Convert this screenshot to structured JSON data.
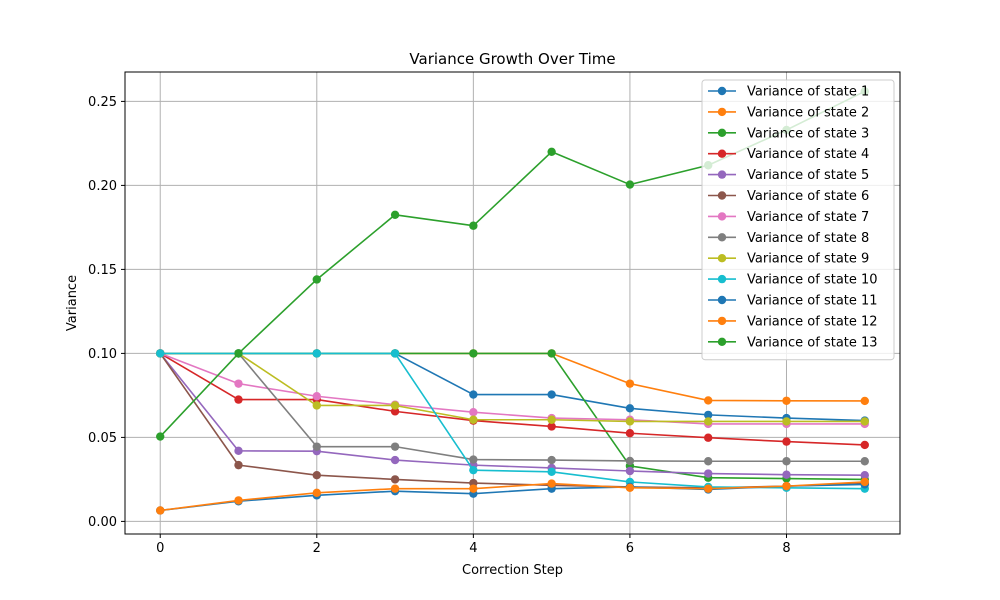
{
  "chart_data": {
    "type": "line",
    "title": "Variance Growth Over Time",
    "xlabel": "Correction Step",
    "ylabel": "Variance",
    "xlim": [
      -0.45,
      9.45
    ],
    "ylim": [
      -0.0075,
      0.2675
    ],
    "xticks": [
      0,
      2,
      4,
      6,
      8
    ],
    "xtick_labels": [
      "0",
      "2",
      "4",
      "6",
      "8"
    ],
    "yticks": [
      0.0,
      0.05,
      0.1,
      0.15,
      0.2,
      0.25
    ],
    "ytick_labels": [
      "0.00",
      "0.05",
      "0.10",
      "0.15",
      "0.20",
      "0.25"
    ],
    "grid": true,
    "legend_position": "top-right",
    "x": [
      0,
      1,
      2,
      3,
      4,
      5,
      6,
      7,
      8,
      9
    ],
    "series": [
      {
        "name": "Variance of state 1",
        "color": "#1f77b4",
        "values": [
          0.1,
          0.1,
          0.1,
          0.1,
          0.0755,
          0.0755,
          0.0673,
          0.0634,
          0.0615,
          0.06
        ]
      },
      {
        "name": "Variance of state 2",
        "color": "#ff7f0e",
        "values": [
          0.1,
          0.1,
          0.1,
          0.1,
          0.1,
          0.1,
          0.082,
          0.072,
          0.0718,
          0.0717
        ]
      },
      {
        "name": "Variance of state 3",
        "color": "#2ca02c",
        "values": [
          0.1,
          0.1,
          0.1,
          0.1,
          0.1,
          0.1,
          0.033,
          0.026,
          0.0255,
          0.025
        ]
      },
      {
        "name": "Variance of state 4",
        "color": "#d62728",
        "values": [
          0.1,
          0.0725,
          0.0725,
          0.0655,
          0.06,
          0.0565,
          0.0525,
          0.0498,
          0.0475,
          0.0455
        ]
      },
      {
        "name": "Variance of state 5",
        "color": "#9467bd",
        "values": [
          0.1,
          0.042,
          0.0418,
          0.0365,
          0.0335,
          0.0318,
          0.03,
          0.0285,
          0.0278,
          0.0275
        ]
      },
      {
        "name": "Variance of state 6",
        "color": "#8c564b",
        "values": [
          0.1,
          0.0335,
          0.0275,
          0.025,
          0.0228,
          0.0215,
          0.0205,
          0.02,
          0.021,
          0.0225
        ]
      },
      {
        "name": "Variance of state 7",
        "color": "#e377c2",
        "values": [
          0.1,
          0.082,
          0.0745,
          0.0695,
          0.065,
          0.0615,
          0.0605,
          0.058,
          0.058,
          0.058
        ]
      },
      {
        "name": "Variance of state 8",
        "color": "#7f7f7f",
        "values": [
          0.1,
          0.1,
          0.0445,
          0.0445,
          0.0368,
          0.0365,
          0.036,
          0.0358,
          0.0358,
          0.0358
        ]
      },
      {
        "name": "Variance of state 9",
        "color": "#bcbd22",
        "values": [
          0.1,
          0.1,
          0.069,
          0.069,
          0.0605,
          0.0605,
          0.0595,
          0.0595,
          0.0595,
          0.0595
        ]
      },
      {
        "name": "Variance of state 10",
        "color": "#17becf",
        "values": [
          0.1,
          0.1,
          0.1,
          0.1,
          0.0305,
          0.0295,
          0.0235,
          0.0205,
          0.02,
          0.0195
        ]
      },
      {
        "name": "Variance of state 11",
        "color": "#1f77b4",
        "values": [
          0.0065,
          0.012,
          0.0155,
          0.018,
          0.0165,
          0.0195,
          0.0205,
          0.019,
          0.021,
          0.022
        ]
      },
      {
        "name": "Variance of state 12",
        "color": "#ff7f0e",
        "values": [
          0.0065,
          0.0125,
          0.017,
          0.0195,
          0.0195,
          0.0225,
          0.02,
          0.0195,
          0.021,
          0.0235
        ]
      },
      {
        "name": "Variance of state 13",
        "color": "#2ca02c",
        "values": [
          0.0505,
          0.1,
          0.144,
          0.1825,
          0.176,
          0.22,
          0.2005,
          0.212,
          0.233,
          0.256
        ]
      }
    ]
  }
}
